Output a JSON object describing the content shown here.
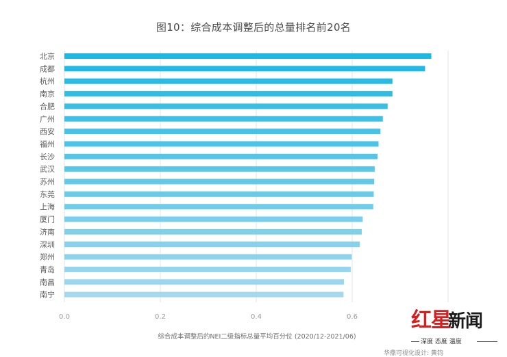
{
  "chart_data": {
    "type": "bar",
    "orientation": "horizontal",
    "title": "图10：综合成本调整后的总量排名前20名",
    "xlabel": "综合成本调整后的NEI二级指标总量平均百分位 (2020/12-2021/06)",
    "ylabel": "",
    "xlim": [
      0,
      0.8
    ],
    "xticks": [
      "0.0",
      "0.2",
      "0.4",
      "0.6"
    ],
    "xtick_values": [
      0,
      0.2,
      0.4,
      0.6
    ],
    "grid": "vertical",
    "legend": "none",
    "categories": [
      "北京",
      "成都",
      "杭州",
      "南京",
      "合肥",
      "广州",
      "西安",
      "福州",
      "长沙",
      "武汉",
      "苏州",
      "东莞",
      "上海",
      "厦门",
      "济南",
      "深圳",
      "郑州",
      "青岛",
      "南昌",
      "南宁"
    ],
    "values": [
      0.765,
      0.752,
      0.684,
      0.684,
      0.674,
      0.664,
      0.659,
      0.655,
      0.653,
      0.647,
      0.646,
      0.645,
      0.644,
      0.622,
      0.62,
      0.616,
      0.599,
      0.597,
      0.583,
      0.582
    ],
    "colors": {
      "bar_top": "#1bb8e3",
      "bar_bottom": "#a3d8ee",
      "grid": "#e3e3e3",
      "tick_text": "#9a9a9a",
      "category_text": "#5a5a5a"
    }
  },
  "footer": {
    "source_credit": "华鼎可视化设计: 黄钧"
  },
  "watermark": {
    "red_text": "红星",
    "black_text": "新闻",
    "tagline": "深度 态度 温度"
  }
}
